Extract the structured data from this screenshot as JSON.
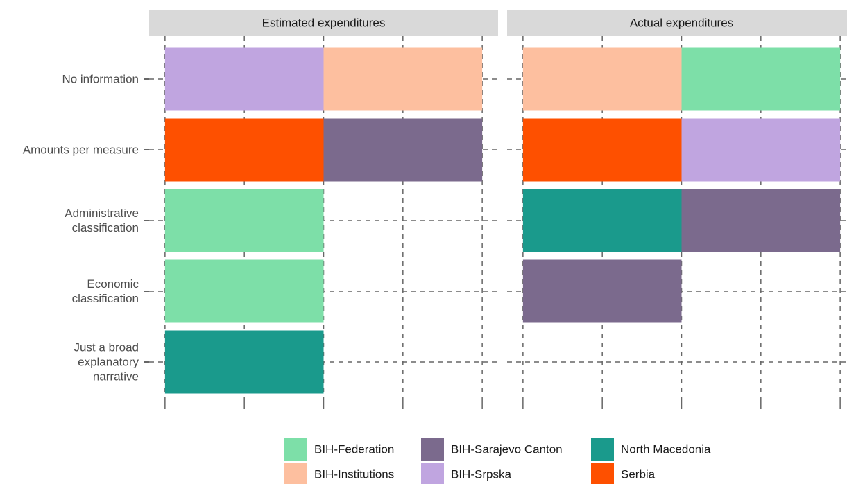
{
  "chart_data": {
    "type": "bar",
    "orientation": "horizontal",
    "stacked": true,
    "facets": [
      "Estimated expenditures",
      "Actual expenditures"
    ],
    "categories": [
      "No information",
      "Amounts per measure",
      "Administrative\nclassification",
      "Economic\nclassification",
      "Just a broad\nexplanatory\nnarrative"
    ],
    "xlim": [
      -0.1,
      2.1
    ],
    "xticks": [
      0,
      0.5,
      1,
      1.5,
      2
    ],
    "grid": true,
    "legend": "bottom",
    "series": [
      {
        "name": "BIH-Federation",
        "color": "#7ddfa8",
        "values": [
          [
            0,
            0,
            1,
            1,
            0
          ],
          [
            1,
            0,
            0,
            0,
            0
          ]
        ]
      },
      {
        "name": "BIH-Institutions",
        "color": "#fdbf9f",
        "values": [
          [
            1,
            0,
            0,
            0,
            0
          ],
          [
            1,
            0,
            0,
            0,
            0
          ]
        ]
      },
      {
        "name": "BIH-Sarajevo Canton",
        "color": "#7b6a8d",
        "values": [
          [
            0,
            1,
            0,
            0,
            0
          ],
          [
            0,
            0,
            1,
            1,
            0
          ]
        ]
      },
      {
        "name": "BIH-Srpska",
        "color": "#c0a5e0",
        "values": [
          [
            1,
            0,
            0,
            0,
            0
          ],
          [
            0,
            1,
            0,
            0,
            0
          ]
        ]
      },
      {
        "name": "North Macedonia",
        "color": "#1a9a8c",
        "values": [
          [
            0,
            0,
            0,
            0,
            1
          ],
          [
            0,
            0,
            1,
            0,
            0
          ]
        ]
      },
      {
        "name": "Serbia",
        "color": "#fe5000",
        "values": [
          [
            0,
            1,
            0,
            0,
            0
          ],
          [
            0,
            1,
            0,
            0,
            0
          ]
        ]
      }
    ]
  }
}
